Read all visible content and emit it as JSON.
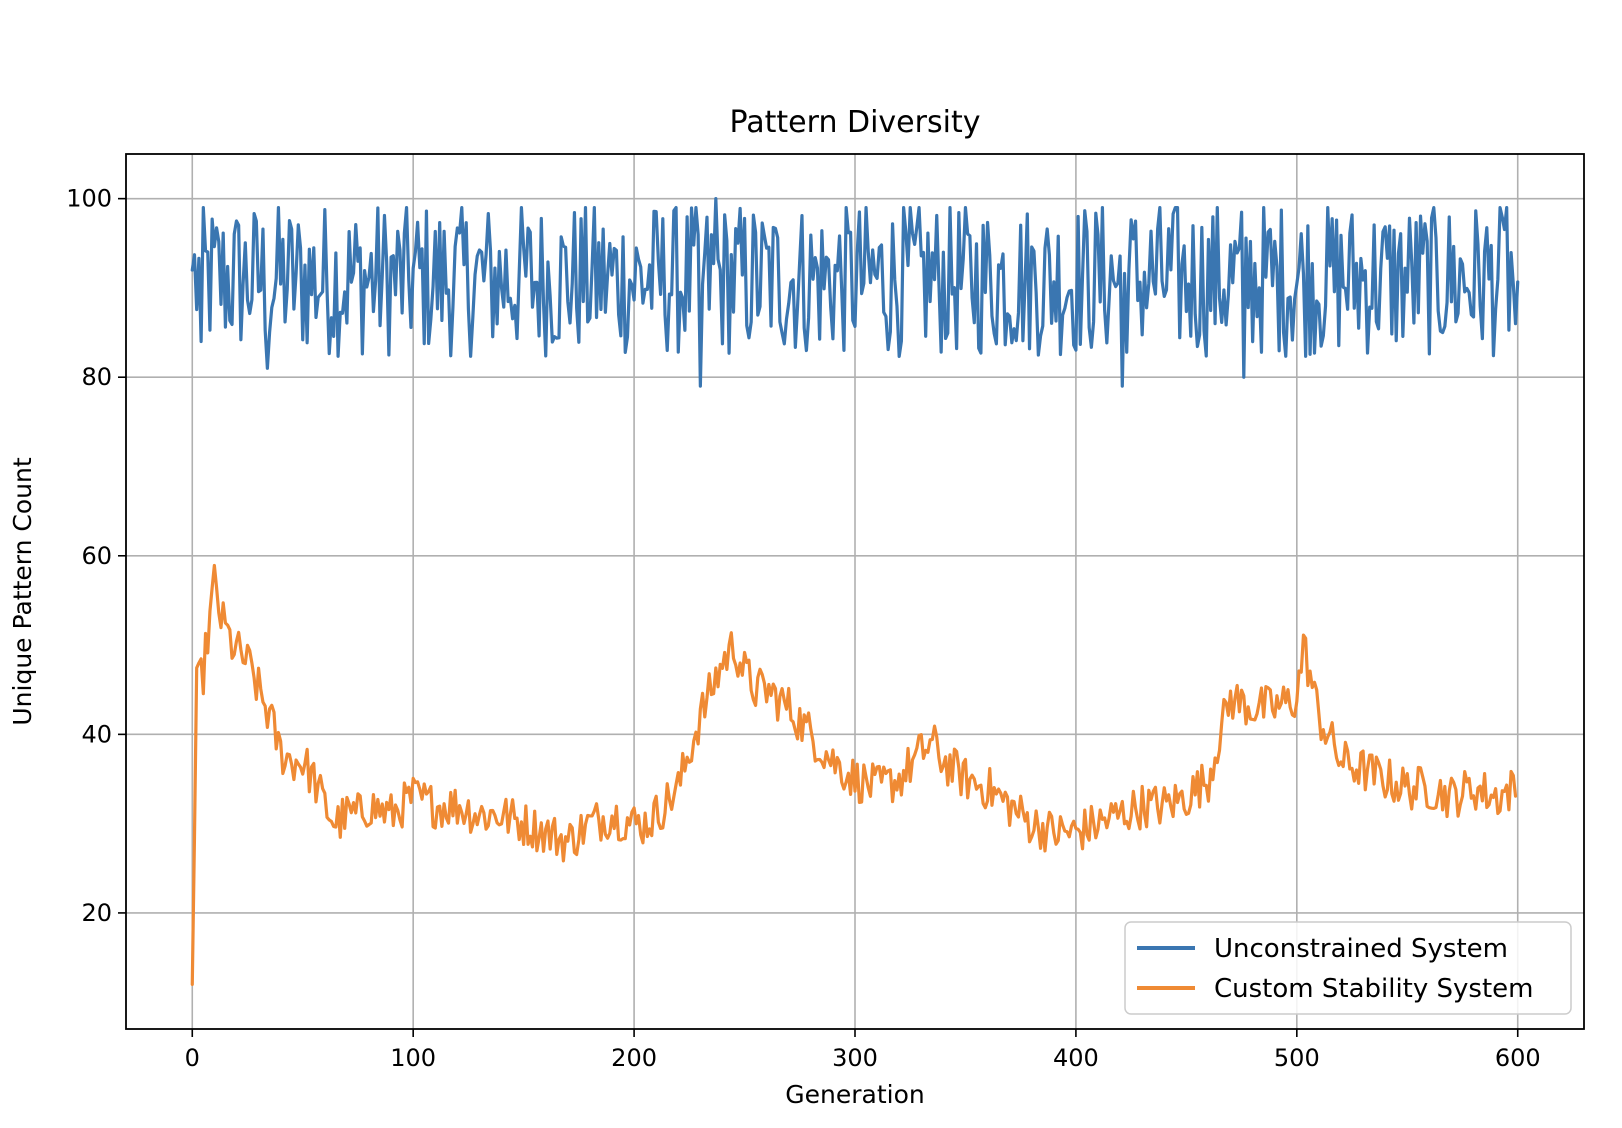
{
  "chart_data": {
    "type": "line",
    "title": "Pattern Diversity",
    "xlabel": "Generation",
    "ylabel": "Unique Pattern Count",
    "xlim": [
      -30,
      630
    ],
    "ylim": [
      7,
      105
    ],
    "xticks": [
      0,
      100,
      200,
      300,
      400,
      500,
      600
    ],
    "yticks": [
      20,
      40,
      60,
      80,
      100
    ],
    "grid": true,
    "legend_position": "lower-right",
    "series": [
      {
        "name": "Unconstrained System",
        "color": "#3a76b1",
        "description": "noisy series oscillating between ~79 and ~100, mean ~91",
        "x_start": 0,
        "x_end": 600,
        "mean": 91,
        "min": 79,
        "max": 100,
        "keypoints": [
          [
            0,
            92
          ],
          [
            4,
            84
          ],
          [
            34,
            81
          ],
          [
            230,
            79
          ],
          [
            237,
            100
          ],
          [
            421,
            79
          ],
          [
            476,
            80
          ],
          [
            595,
            99
          ],
          [
            599,
            86
          ]
        ]
      },
      {
        "name": "Custom Stability System",
        "color": "#ef8a34",
        "description": "starts at ~12, jumps to ~58 near generation 10, decays, with peaks near 245 and 500",
        "points": [
          [
            0,
            12
          ],
          [
            2,
            45
          ],
          [
            5,
            47
          ],
          [
            8,
            53
          ],
          [
            10,
            57
          ],
          [
            13,
            53
          ],
          [
            18,
            50
          ],
          [
            25,
            48
          ],
          [
            30,
            45
          ],
          [
            35,
            42
          ],
          [
            40,
            38
          ],
          [
            45,
            37
          ],
          [
            50,
            37
          ],
          [
            55,
            35
          ],
          [
            60,
            32
          ],
          [
            65,
            30
          ],
          [
            70,
            31
          ],
          [
            75,
            31
          ],
          [
            80,
            32
          ],
          [
            90,
            31
          ],
          [
            100,
            33
          ],
          [
            110,
            32
          ],
          [
            120,
            32
          ],
          [
            130,
            31
          ],
          [
            140,
            31
          ],
          [
            150,
            30
          ],
          [
            160,
            29
          ],
          [
            170,
            28
          ],
          [
            180,
            30
          ],
          [
            190,
            31
          ],
          [
            200,
            30
          ],
          [
            205,
            30
          ],
          [
            210,
            31
          ],
          [
            220,
            34
          ],
          [
            230,
            42
          ],
          [
            235,
            45
          ],
          [
            240,
            48
          ],
          [
            245,
            50
          ],
          [
            250,
            47
          ],
          [
            255,
            45
          ],
          [
            260,
            45
          ],
          [
            270,
            43
          ],
          [
            280,
            40
          ],
          [
            290,
            37
          ],
          [
            300,
            35
          ],
          [
            310,
            34
          ],
          [
            320,
            35
          ],
          [
            330,
            38
          ],
          [
            335,
            39
          ],
          [
            340,
            37
          ],
          [
            350,
            35
          ],
          [
            360,
            34
          ],
          [
            370,
            32
          ],
          [
            380,
            30
          ],
          [
            390,
            29
          ],
          [
            400,
            29
          ],
          [
            410,
            30
          ],
          [
            420,
            31
          ],
          [
            430,
            32
          ],
          [
            440,
            32
          ],
          [
            450,
            33
          ],
          [
            460,
            35
          ],
          [
            465,
            40
          ],
          [
            470,
            44
          ],
          [
            480,
            43
          ],
          [
            490,
            43
          ],
          [
            500,
            44
          ],
          [
            503,
            50
          ],
          [
            510,
            42
          ],
          [
            520,
            37
          ],
          [
            530,
            36
          ],
          [
            540,
            35
          ],
          [
            550,
            34
          ],
          [
            560,
            34
          ],
          [
            570,
            33
          ],
          [
            580,
            34
          ],
          [
            590,
            33
          ],
          [
            599,
            34
          ]
        ],
        "noise": 2.5
      }
    ]
  }
}
